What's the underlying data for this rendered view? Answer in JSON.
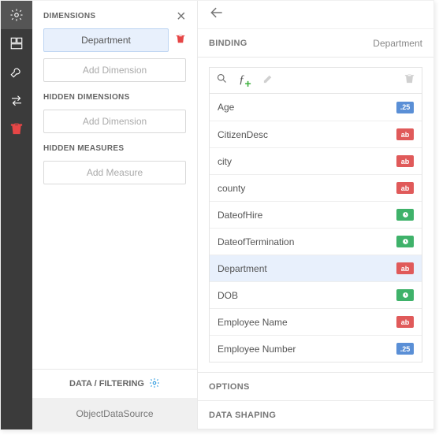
{
  "toolbar": {
    "items": [
      "gear",
      "grid",
      "wrench",
      "swap",
      "trash"
    ],
    "active_index": 0
  },
  "panel": {
    "sections": {
      "dimensions": {
        "title": "DIMENSIONS",
        "item": "Department",
        "add_label": "Add Dimension"
      },
      "hidden_dimensions": {
        "title": "HIDDEN DIMENSIONS",
        "add_label": "Add Dimension"
      },
      "hidden_measures": {
        "title": "HIDDEN MEASURES",
        "add_label": "Add Measure"
      }
    },
    "footer_link": "DATA / FILTERING",
    "datasource": "ObjectDataSource"
  },
  "binding": {
    "label": "BINDING",
    "bound_to": "Department",
    "fields": [
      {
        "name": "Age",
        "type": "num",
        "badge": ".25"
      },
      {
        "name": "CitizenDesc",
        "type": "txt",
        "badge": "ab"
      },
      {
        "name": "city",
        "type": "txt",
        "badge": "ab"
      },
      {
        "name": "county",
        "type": "txt",
        "badge": "ab"
      },
      {
        "name": "DateofHire",
        "type": "date",
        "badge": ""
      },
      {
        "name": "DateofTermination",
        "type": "date",
        "badge": ""
      },
      {
        "name": "Department",
        "type": "txt",
        "badge": "ab",
        "selected": true
      },
      {
        "name": "DOB",
        "type": "date",
        "badge": ""
      },
      {
        "name": "Employee Name",
        "type": "txt",
        "badge": "ab"
      },
      {
        "name": "Employee Number",
        "type": "num",
        "badge": ".25"
      }
    ]
  },
  "sections_below": {
    "options": "OPTIONS",
    "shaping": "DATA SHAPING"
  }
}
